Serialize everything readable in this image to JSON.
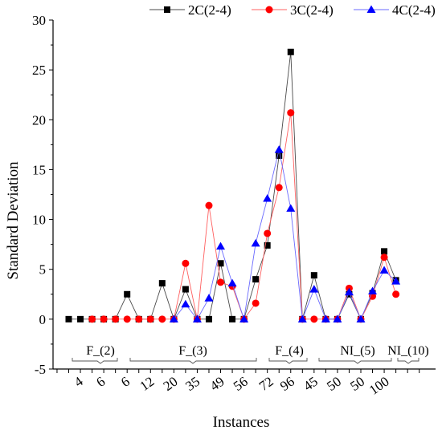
{
  "chart_data": {
    "type": "line",
    "xlabel": "Instances",
    "ylabel": "Standard Deviation",
    "ylim": [
      -5,
      30
    ],
    "yticks": [
      -5,
      0,
      5,
      10,
      15,
      20,
      25,
      30
    ],
    "x_tick_labels": [
      "4",
      "6",
      "6",
      "12",
      "20",
      "35",
      "49",
      "56",
      "72",
      "96",
      "45",
      "50",
      "50",
      "100"
    ],
    "groups": [
      {
        "label": "F_(2)"
      },
      {
        "label": "F_(3)"
      },
      {
        "label": "F_(4)"
      },
      {
        "label": "NI_(5)"
      },
      {
        "label": "NI_(10)"
      }
    ],
    "legend_position": "top-right",
    "grid": false,
    "series": [
      {
        "name": "2C(2-4)",
        "color": "#000000",
        "marker": "square",
        "values": [
          0,
          0,
          0,
          0,
          0,
          2.5,
          0,
          0,
          3.6,
          0,
          3.0,
          0,
          0,
          5.6,
          0,
          0,
          4.0,
          7.4,
          16.4,
          26.8,
          0,
          4.4,
          0,
          0,
          2.5,
          0,
          2.6,
          6.8,
          3.9
        ]
      },
      {
        "name": "3C(2-4)",
        "color": "#ff0000",
        "marker": "circle",
        "values": [
          null,
          null,
          0,
          0,
          0,
          0,
          0,
          0,
          0,
          0,
          5.6,
          0,
          11.4,
          3.7,
          3.3,
          0,
          1.6,
          8.6,
          13.2,
          20.7,
          0,
          0,
          0,
          0,
          3.1,
          0,
          2.3,
          6.2,
          2.5
        ]
      },
      {
        "name": "4C(2-4)",
        "color": "#0000ff",
        "marker": "triangle",
        "values": [
          null,
          null,
          null,
          null,
          null,
          null,
          null,
          null,
          null,
          0,
          1.5,
          0,
          2.1,
          7.3,
          3.6,
          0,
          7.6,
          12.1,
          17.0,
          11.1,
          0,
          3.0,
          0,
          0,
          2.7,
          0,
          2.8,
          4.9,
          3.8
        ]
      }
    ]
  }
}
